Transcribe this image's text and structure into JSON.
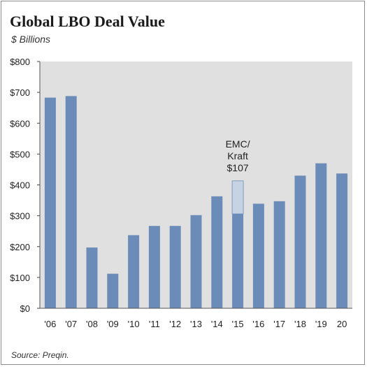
{
  "header": {
    "title": "Global LBO Deal Value",
    "subtitle": "$ Billions"
  },
  "footer": {
    "source": "Source: Preqin."
  },
  "colors": {
    "plot_background": "#e0e0e0",
    "bar": "#6b8cb8",
    "bar_highlight": "#c5d3e3"
  },
  "chart_data": {
    "type": "bar",
    "title": "Global LBO Deal Value",
    "subtitle": "$ Billions",
    "xlabel": "",
    "ylabel": "",
    "categories": [
      "'06",
      "'07",
      "'08",
      "'09",
      "'10",
      "'11",
      "'12",
      "'13",
      "'14",
      "'15",
      "'16",
      "'17",
      "'18",
      "'19",
      "20"
    ],
    "series": [
      {
        "values": [
          683,
          688,
          197,
          112,
          237,
          267,
          267,
          302,
          363,
          306,
          339,
          347,
          430,
          470,
          437
        ]
      },
      {
        "name": "EMC/Kraft",
        "values": [
          0,
          0,
          0,
          0,
          0,
          0,
          0,
          0,
          0,
          107,
          0,
          0,
          0,
          0,
          0
        ]
      }
    ],
    "stacked": true,
    "ylim": [
      0,
      800
    ],
    "yticks": [
      0,
      100,
      200,
      300,
      400,
      500,
      600,
      700,
      800
    ],
    "ytick_labels": [
      "$0",
      "$100",
      "$200",
      "$300",
      "$400",
      "$500",
      "$600",
      "$700",
      "$800"
    ],
    "grid": false,
    "annotation": {
      "category": "'15",
      "lines": [
        "EMC/",
        "Kraft",
        "$107"
      ]
    }
  }
}
